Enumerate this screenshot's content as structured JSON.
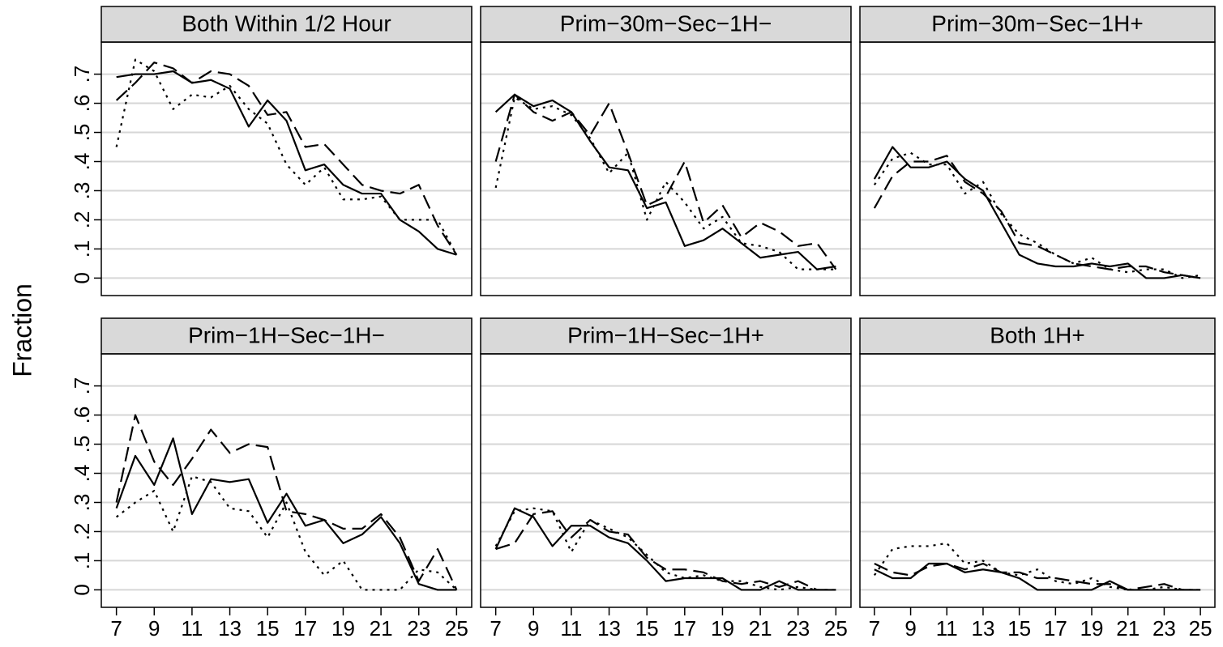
{
  "ylabel": "Fraction",
  "chart_data": [
    {
      "type": "line",
      "title": "Both Within 1/2 Hour",
      "x": [
        7,
        8,
        9,
        10,
        11,
        12,
        13,
        14,
        15,
        16,
        17,
        18,
        19,
        20,
        21,
        22,
        23,
        24,
        25
      ],
      "xlim": [
        6.2,
        25.8
      ],
      "ylim": [
        -0.06,
        0.81
      ],
      "yticks": [
        0,
        {
          "value": 0.1,
          "label": ".1"
        },
        {
          "value": 0.2,
          "label": ".2"
        },
        {
          "value": 0.3,
          "label": ".3"
        },
        {
          "value": 0.4,
          "label": ".4"
        },
        {
          "value": 0.5,
          "label": ".5"
        },
        {
          "value": 0.6,
          "label": ".6"
        },
        {
          "value": 0.7,
          "label": ".7"
        }
      ],
      "grid": true,
      "series": [
        {
          "color": "#000000",
          "dash": "solid",
          "values": [
            0.69,
            0.7,
            0.7,
            0.71,
            0.67,
            0.68,
            0.65,
            0.52,
            0.61,
            0.54,
            0.37,
            0.39,
            0.32,
            0.29,
            0.29,
            0.2,
            0.16,
            0.1,
            0.08
          ]
        },
        {
          "color": "#000000",
          "dash": "dashed",
          "values": [
            0.61,
            0.67,
            0.74,
            0.72,
            0.67,
            0.71,
            0.7,
            0.66,
            0.56,
            0.57,
            0.45,
            0.46,
            0.39,
            0.32,
            0.3,
            0.29,
            0.32,
            0.18,
            0.08
          ]
        },
        {
          "color": "#000000",
          "dash": "dotted",
          "values": [
            0.45,
            0.75,
            0.71,
            0.58,
            0.63,
            0.62,
            0.66,
            0.58,
            0.53,
            0.39,
            0.32,
            0.38,
            0.27,
            0.27,
            0.28,
            0.2,
            0.2,
            0.2,
            0.08
          ]
        }
      ]
    },
    {
      "type": "line",
      "title": "Prim−30m−Sec−1H−",
      "x": [
        7,
        8,
        9,
        10,
        11,
        12,
        13,
        14,
        15,
        16,
        17,
        18,
        19,
        20,
        21,
        22,
        23,
        24,
        25
      ],
      "xlim": [
        6.2,
        25.8
      ],
      "ylim": [
        -0.06,
        0.81
      ],
      "yticks": [
        0,
        {
          "value": 0.1,
          "label": ".1"
        },
        {
          "value": 0.2,
          "label": ".2"
        },
        {
          "value": 0.3,
          "label": ".3"
        },
        {
          "value": 0.4,
          "label": ".4"
        },
        {
          "value": 0.5,
          "label": ".5"
        },
        {
          "value": 0.6,
          "label": ".6"
        },
        {
          "value": 0.7,
          "label": ".7"
        }
      ],
      "grid": true,
      "series": [
        {
          "color": "#000000",
          "dash": "solid",
          "values": [
            0.57,
            0.63,
            0.59,
            0.61,
            0.57,
            0.47,
            0.38,
            0.37,
            0.24,
            0.26,
            0.11,
            0.13,
            0.17,
            0.12,
            0.07,
            0.08,
            0.09,
            0.03,
            0.04
          ]
        },
        {
          "color": "#000000",
          "dash": "dashed",
          "values": [
            0.4,
            0.63,
            0.57,
            0.54,
            0.57,
            0.49,
            0.6,
            0.43,
            0.25,
            0.28,
            0.4,
            0.19,
            0.25,
            0.14,
            0.19,
            0.16,
            0.11,
            0.12,
            0.03
          ]
        },
        {
          "color": "#000000",
          "dash": "dotted",
          "values": [
            0.31,
            0.62,
            0.58,
            0.59,
            0.56,
            0.48,
            0.36,
            0.43,
            0.2,
            0.33,
            0.26,
            0.17,
            0.21,
            0.12,
            0.11,
            0.09,
            0.03,
            0.03,
            0.03
          ]
        }
      ]
    },
    {
      "type": "line",
      "title": "Prim−30m−Sec−1H+",
      "x": [
        7,
        8,
        9,
        10,
        11,
        12,
        13,
        14,
        15,
        16,
        17,
        18,
        19,
        20,
        21,
        22,
        23,
        24,
        25
      ],
      "xlim": [
        6.2,
        25.8
      ],
      "ylim": [
        -0.06,
        0.81
      ],
      "yticks": [
        0,
        {
          "value": 0.1,
          "label": ".1"
        },
        {
          "value": 0.2,
          "label": ".2"
        },
        {
          "value": 0.3,
          "label": ".3"
        },
        {
          "value": 0.4,
          "label": ".4"
        },
        {
          "value": 0.5,
          "label": ".5"
        },
        {
          "value": 0.6,
          "label": ".6"
        },
        {
          "value": 0.7,
          "label": ".7"
        }
      ],
      "grid": true,
      "series": [
        {
          "color": "#000000",
          "dash": "solid",
          "values": [
            0.34,
            0.45,
            0.38,
            0.38,
            0.4,
            0.34,
            0.3,
            0.19,
            0.08,
            0.05,
            0.04,
            0.04,
            0.05,
            0.04,
            0.05,
            0.0,
            0.0,
            0.01,
            0.0
          ]
        },
        {
          "color": "#000000",
          "dash": "dashed",
          "values": [
            0.24,
            0.35,
            0.4,
            0.4,
            0.42,
            0.33,
            0.29,
            0.23,
            0.12,
            0.11,
            0.08,
            0.05,
            0.04,
            0.03,
            0.04,
            0.04,
            0.02,
            0.01,
            0.0
          ]
        },
        {
          "color": "#000000",
          "dash": "dotted",
          "values": [
            0.32,
            0.41,
            0.43,
            0.39,
            0.39,
            0.29,
            0.33,
            0.22,
            0.15,
            0.12,
            0.08,
            0.05,
            0.07,
            0.03,
            0.02,
            0.03,
            0.03,
            0.0,
            0.01
          ]
        }
      ]
    },
    {
      "type": "line",
      "title": "Prim−1H−Sec−1H−",
      "x": [
        7,
        8,
        9,
        10,
        11,
        12,
        13,
        14,
        15,
        16,
        17,
        18,
        19,
        20,
        21,
        22,
        23,
        24,
        25
      ],
      "xlim": [
        6.2,
        25.8
      ],
      "ylim": [
        -0.06,
        0.81
      ],
      "xticks": [
        7,
        9,
        11,
        13,
        15,
        17,
        19,
        21,
        23,
        25
      ],
      "yticks": [
        0,
        {
          "value": 0.1,
          "label": ".1"
        },
        {
          "value": 0.2,
          "label": ".2"
        },
        {
          "value": 0.3,
          "label": ".3"
        },
        {
          "value": 0.4,
          "label": ".4"
        },
        {
          "value": 0.5,
          "label": ".5"
        },
        {
          "value": 0.6,
          "label": ".6"
        },
        {
          "value": 0.7,
          "label": ".7"
        }
      ],
      "grid": true,
      "series": [
        {
          "color": "#000000",
          "dash": "solid",
          "values": [
            0.28,
            0.46,
            0.36,
            0.52,
            0.26,
            0.38,
            0.37,
            0.38,
            0.23,
            0.33,
            0.22,
            0.24,
            0.16,
            0.19,
            0.25,
            0.16,
            0.02,
            0.0,
            0.0
          ]
        },
        {
          "color": "#000000",
          "dash": "dashed",
          "values": [
            0.3,
            0.6,
            0.44,
            0.36,
            0.45,
            0.55,
            0.47,
            0.5,
            0.49,
            0.27,
            0.26,
            0.24,
            0.21,
            0.21,
            0.26,
            0.18,
            0.03,
            0.14,
            0.0
          ]
        },
        {
          "color": "#000000",
          "dash": "dotted",
          "values": [
            0.25,
            0.3,
            0.34,
            0.2,
            0.39,
            0.37,
            0.28,
            0.27,
            0.18,
            0.3,
            0.13,
            0.05,
            0.1,
            0.0,
            0.0,
            0.0,
            0.07,
            0.06,
            0.0
          ]
        }
      ]
    },
    {
      "type": "line",
      "title": "Prim−1H−Sec−1H+",
      "x": [
        7,
        8,
        9,
        10,
        11,
        12,
        13,
        14,
        15,
        16,
        17,
        18,
        19,
        20,
        21,
        22,
        23,
        24,
        25
      ],
      "xlim": [
        6.2,
        25.8
      ],
      "ylim": [
        -0.06,
        0.81
      ],
      "xticks": [
        7,
        9,
        11,
        13,
        15,
        17,
        19,
        21,
        23,
        25
      ],
      "yticks": [
        0,
        {
          "value": 0.1,
          "label": ".1"
        },
        {
          "value": 0.2,
          "label": ".2"
        },
        {
          "value": 0.3,
          "label": ".3"
        },
        {
          "value": 0.4,
          "label": ".4"
        },
        {
          "value": 0.5,
          "label": ".5"
        },
        {
          "value": 0.6,
          "label": ".6"
        },
        {
          "value": 0.7,
          "label": ".7"
        }
      ],
      "grid": true,
      "series": [
        {
          "color": "#000000",
          "dash": "solid",
          "values": [
            0.14,
            0.28,
            0.25,
            0.15,
            0.22,
            0.22,
            0.18,
            0.16,
            0.1,
            0.03,
            0.04,
            0.04,
            0.04,
            0.0,
            0.0,
            0.03,
            0.0,
            0.0,
            0.0
          ]
        },
        {
          "color": "#000000",
          "dash": "dashed",
          "values": [
            0.14,
            0.16,
            0.26,
            0.27,
            0.18,
            0.24,
            0.2,
            0.19,
            0.11,
            0.07,
            0.07,
            0.06,
            0.03,
            0.02,
            0.03,
            0.01,
            0.03,
            0.0,
            0.0
          ]
        },
        {
          "color": "#000000",
          "dash": "dotted",
          "values": [
            0.15,
            0.27,
            0.28,
            0.27,
            0.13,
            0.24,
            0.21,
            0.18,
            0.12,
            0.06,
            0.04,
            0.05,
            0.03,
            0.03,
            0.01,
            0.0,
            0.01,
            0.0,
            0.0
          ]
        }
      ]
    },
    {
      "type": "line",
      "title": "Both 1H+",
      "x": [
        7,
        8,
        9,
        10,
        11,
        12,
        13,
        14,
        15,
        16,
        17,
        18,
        19,
        20,
        21,
        22,
        23,
        24,
        25
      ],
      "xlim": [
        6.2,
        25.8
      ],
      "ylim": [
        -0.06,
        0.81
      ],
      "xticks": [
        7,
        9,
        11,
        13,
        15,
        17,
        19,
        21,
        23,
        25
      ],
      "yticks": [
        0,
        {
          "value": 0.1,
          "label": ".1"
        },
        {
          "value": 0.2,
          "label": ".2"
        },
        {
          "value": 0.3,
          "label": ".3"
        },
        {
          "value": 0.4,
          "label": ".4"
        },
        {
          "value": 0.5,
          "label": ".5"
        },
        {
          "value": 0.6,
          "label": ".6"
        },
        {
          "value": 0.7,
          "label": ".7"
        }
      ],
      "grid": true,
      "series": [
        {
          "color": "#000000",
          "dash": "solid",
          "values": [
            0.07,
            0.04,
            0.04,
            0.09,
            0.09,
            0.06,
            0.07,
            0.06,
            0.04,
            0.0,
            0.0,
            0.0,
            0.0,
            0.03,
            0.0,
            0.0,
            0.0,
            0.0,
            0.0
          ]
        },
        {
          "color": "#000000",
          "dash": "dashed",
          "values": [
            0.09,
            0.06,
            0.05,
            0.08,
            0.09,
            0.07,
            0.09,
            0.06,
            0.06,
            0.04,
            0.04,
            0.03,
            0.02,
            0.02,
            0.0,
            0.01,
            0.02,
            0.0,
            0.0
          ]
        },
        {
          "color": "#000000",
          "dash": "dotted",
          "values": [
            0.05,
            0.14,
            0.15,
            0.15,
            0.16,
            0.09,
            0.1,
            0.06,
            0.05,
            0.07,
            0.03,
            0.02,
            0.04,
            0.01,
            0.0,
            0.0,
            0.01,
            0.0,
            0.0
          ]
        }
      ]
    }
  ]
}
